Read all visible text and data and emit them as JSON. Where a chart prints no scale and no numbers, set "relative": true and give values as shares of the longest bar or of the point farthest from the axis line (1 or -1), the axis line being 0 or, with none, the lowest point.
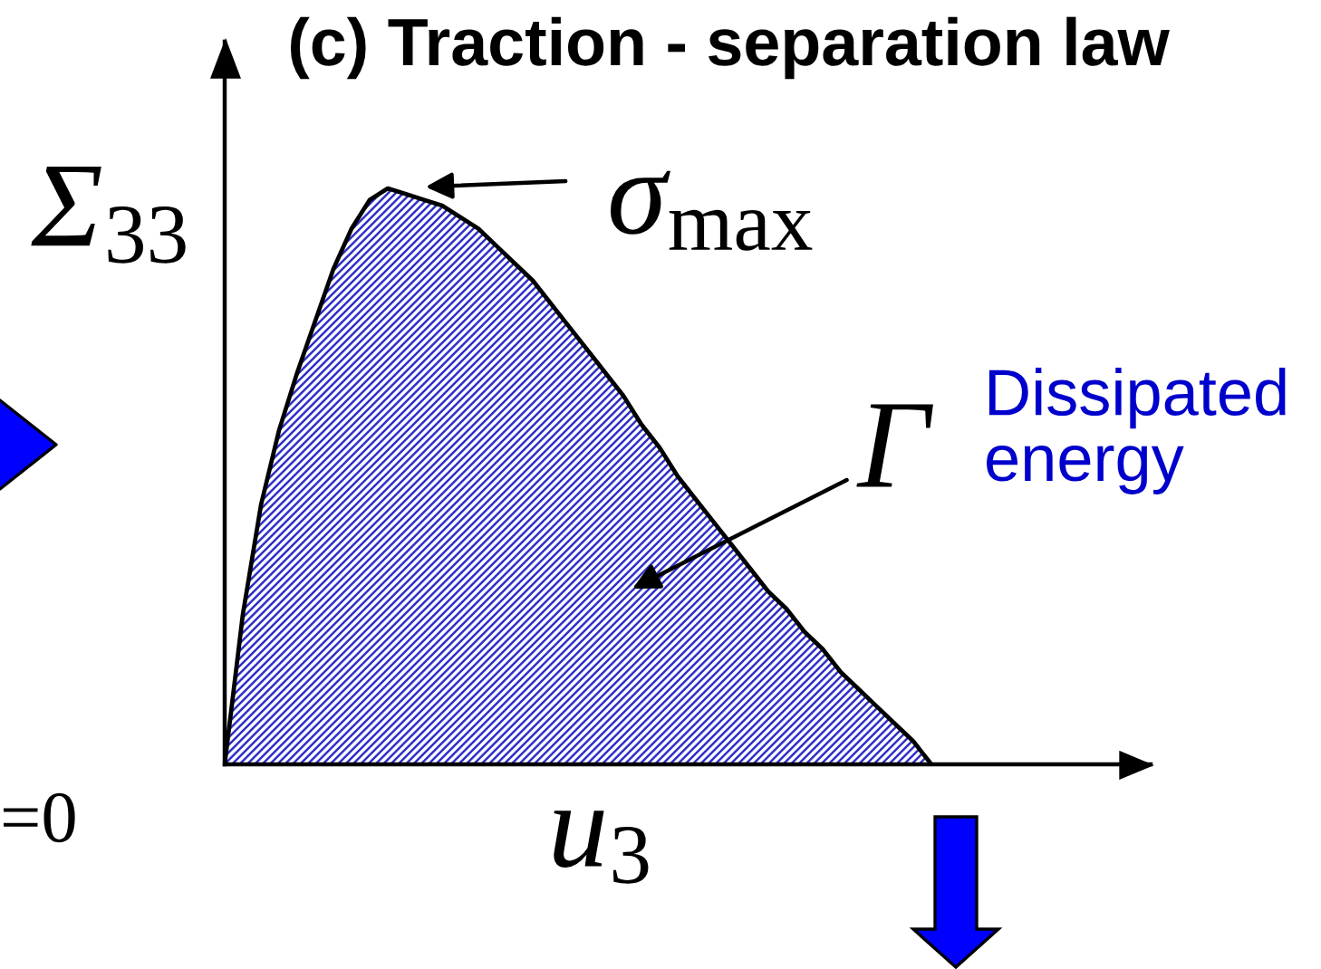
{
  "chart_data": {
    "type": "area",
    "title": "(c) Traction - separation law",
    "xlabel": "u$_{3}$",
    "ylabel": "Σ$_{33}$",
    "relative": true,
    "categories": [
      null,
      null,
      null,
      null,
      null,
      null,
      null,
      null,
      null,
      null,
      null,
      null,
      null,
      null,
      null,
      null,
      null,
      null,
      null,
      null,
      null,
      null,
      null,
      null,
      null,
      null,
      null,
      null,
      null,
      null,
      null,
      null,
      null,
      null,
      null,
      null,
      null,
      null,
      null,
      null
    ],
    "series": [
      {
        "color": "#3030c8",
        "values": [
          0,
          0.26,
          0.45,
          0.58,
          0.68,
          0.77,
          0.86,
          0.93,
          0.98,
          1,
          0.99,
          0.98,
          0.97,
          0.95,
          0.93,
          0.9,
          0.87,
          0.84,
          0.8,
          0.76,
          0.72,
          0.68,
          0.64,
          0.59,
          0.55,
          0.5,
          0.46,
          0.42,
          0.38,
          0.34,
          0.3,
          0.27,
          0.23,
          0.2,
          0.16,
          0.13,
          0.1,
          0.07,
          0.04,
          0
        ]
      }
    ],
    "annotations": [
      "σ$_{max}$",
      "Γ",
      "Dissipated energy",
      "=0"
    ]
  }
}
